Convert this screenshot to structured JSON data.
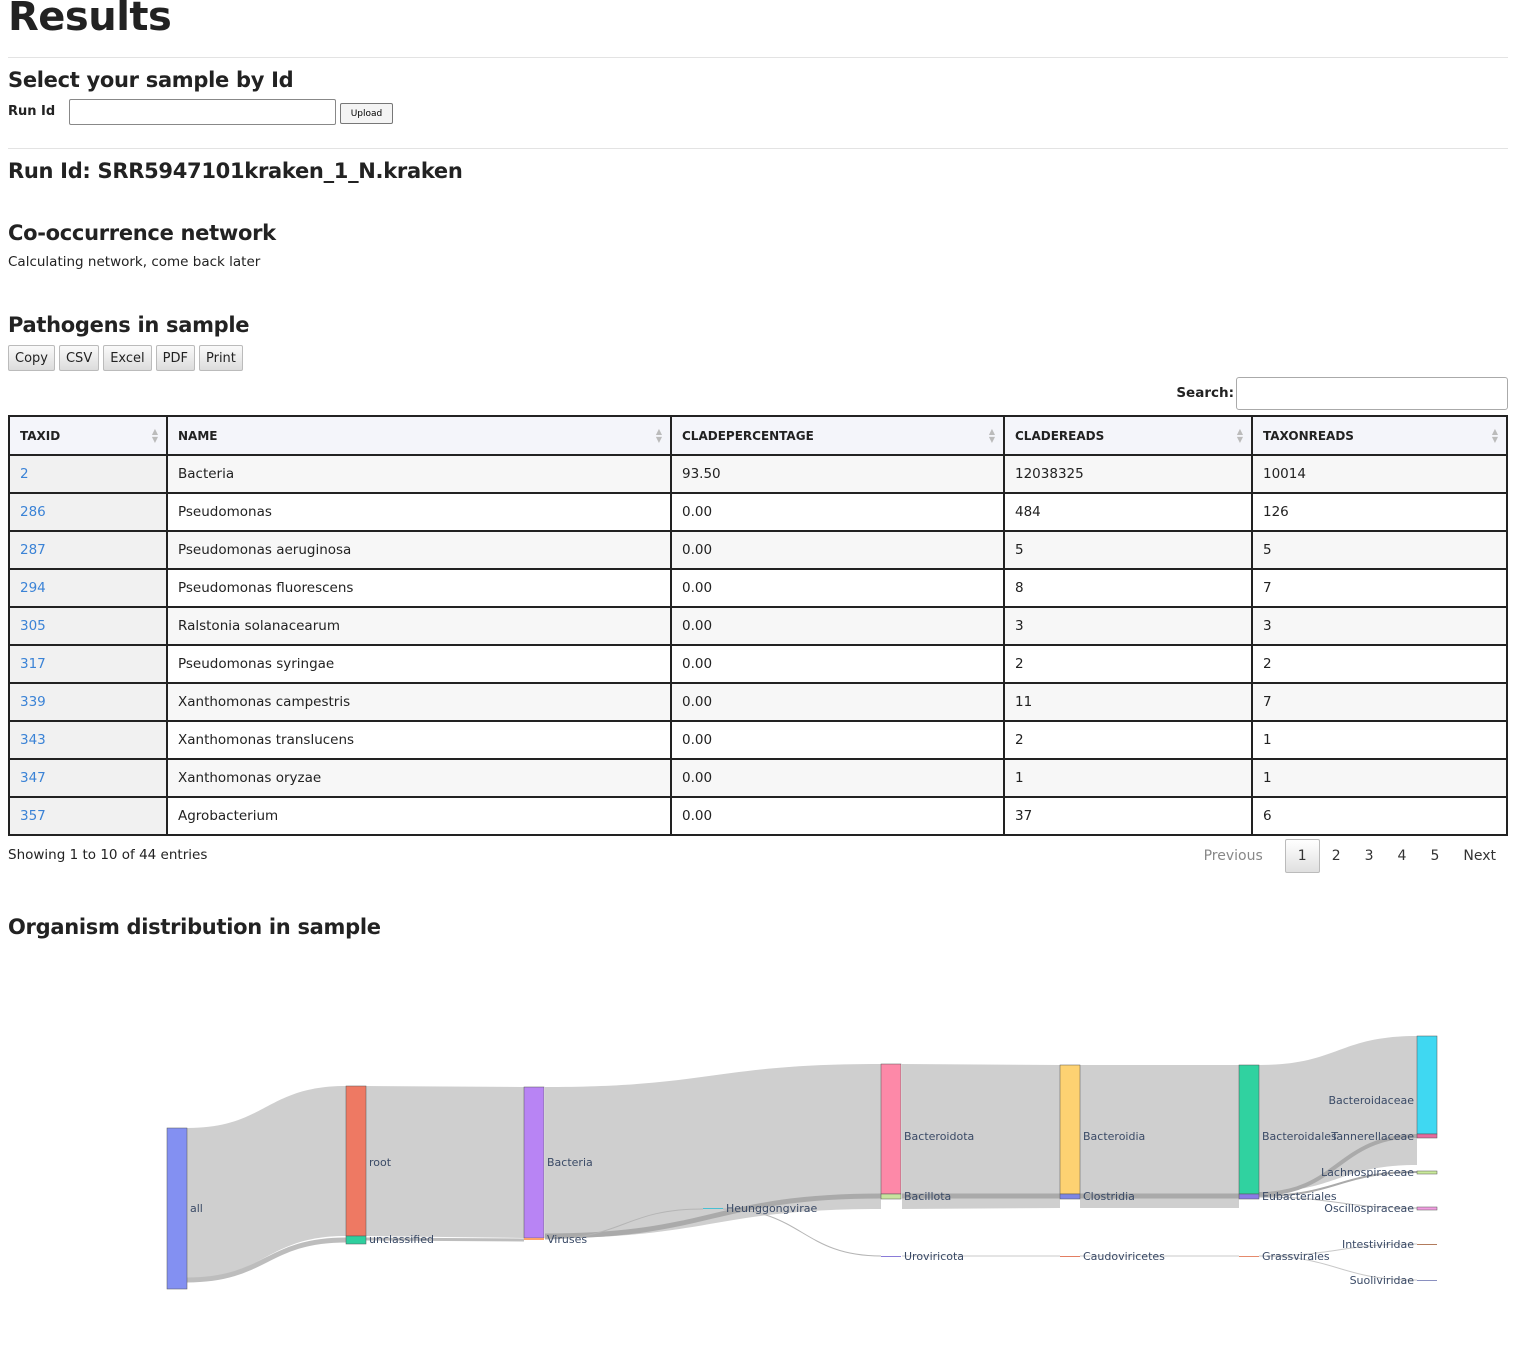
{
  "page": {
    "title": "Results",
    "select_heading": "Select your sample by Id",
    "run_id_label": "Run Id",
    "run_id_value": "",
    "upload_label": "Upload",
    "run_heading": "Run Id: SRR5947101kraken_1_N.kraken",
    "network_heading": "Co-occurrence network",
    "network_text": "Calculating network, come back later",
    "pathogens_heading": "Pathogens in sample",
    "distribution_heading": "Organism distribution in sample"
  },
  "export_buttons": [
    "Copy",
    "CSV",
    "Excel",
    "PDF",
    "Print"
  ],
  "search": {
    "label": "Search:",
    "value": ""
  },
  "table": {
    "columns": [
      "TAXID",
      "NAME",
      "CLADEPERCENTAGE",
      "CLADEREADS",
      "TAXONREADS"
    ],
    "rows": [
      [
        "2",
        "Bacteria",
        "93.50",
        "12038325",
        "10014"
      ],
      [
        "286",
        "Pseudomonas",
        "0.00",
        "484",
        "126"
      ],
      [
        "287",
        "Pseudomonas aeruginosa",
        "0.00",
        "5",
        "5"
      ],
      [
        "294",
        "Pseudomonas fluorescens",
        "0.00",
        "8",
        "7"
      ],
      [
        "305",
        "Ralstonia solanacearum",
        "0.00",
        "3",
        "3"
      ],
      [
        "317",
        "Pseudomonas syringae",
        "0.00",
        "2",
        "2"
      ],
      [
        "339",
        "Xanthomonas campestris",
        "0.00",
        "11",
        "7"
      ],
      [
        "343",
        "Xanthomonas translucens",
        "0.00",
        "2",
        "1"
      ],
      [
        "347",
        "Xanthomonas oryzae",
        "0.00",
        "1",
        "1"
      ],
      [
        "357",
        "Agrobacterium",
        "0.00",
        "37",
        "6"
      ]
    ]
  },
  "table_info": "Showing 1 to 10 of 44 entries",
  "pagination": {
    "previous": "Previous",
    "pages": [
      "1",
      "2",
      "3",
      "4",
      "5"
    ],
    "current": "1",
    "next": "Next"
  },
  "sankey": {
    "nodes": [
      {
        "id": "all",
        "label": "all",
        "color": "#8390f2"
      },
      {
        "id": "root",
        "label": "root",
        "color": "#ee7963"
      },
      {
        "id": "unclassified",
        "label": "unclassified",
        "color": "#2fcf9e"
      },
      {
        "id": "bacteria",
        "label": "Bacteria",
        "color": "#b884f4"
      },
      {
        "id": "viruses",
        "label": "Viruses",
        "color": "#fda36b"
      },
      {
        "id": "heunggongvirae",
        "label": "Heunggongvirae",
        "color": "#49bfd2"
      },
      {
        "id": "bacteroidota",
        "label": "Bacteroidota",
        "color": "#fd89a8"
      },
      {
        "id": "bacillota",
        "label": "Bacillota",
        "color": "#c8e39f"
      },
      {
        "id": "uroviricota",
        "label": "Uroviricota",
        "color": "#8a7bd8"
      },
      {
        "id": "bacteroidia",
        "label": "Bacteroidia",
        "color": "#fdd272"
      },
      {
        "id": "clostridia",
        "label": "Clostridia",
        "color": "#7d86e4"
      },
      {
        "id": "caudoviricetes",
        "label": "Caudoviricetes",
        "color": "#e37e62"
      },
      {
        "id": "bacteroidales",
        "label": "Bacteroidales",
        "color": "#30d2a0"
      },
      {
        "id": "eubacteriales",
        "label": "Eubacteriales",
        "color": "#8a7be4"
      },
      {
        "id": "grassvirales",
        "label": "Grassvirales",
        "color": "#e58a6c"
      },
      {
        "id": "bacteroidaceae",
        "label": "Bacteroidaceae",
        "color": "#3fd8f2"
      },
      {
        "id": "tannerellaceae",
        "label": "Tannerellaceae",
        "color": "#e56a9c"
      },
      {
        "id": "lachnospiraceae",
        "label": "Lachnospiraceae",
        "color": "#c9ea9a"
      },
      {
        "id": "oscillospiraceae",
        "label": "Oscillospiraceae",
        "color": "#f19de0"
      },
      {
        "id": "intestiviridae",
        "label": "Intestiviridae",
        "color": "#b27b5c"
      },
      {
        "id": "suoliviridae",
        "label": "Suoliviridae",
        "color": "#8a90c0"
      }
    ]
  }
}
